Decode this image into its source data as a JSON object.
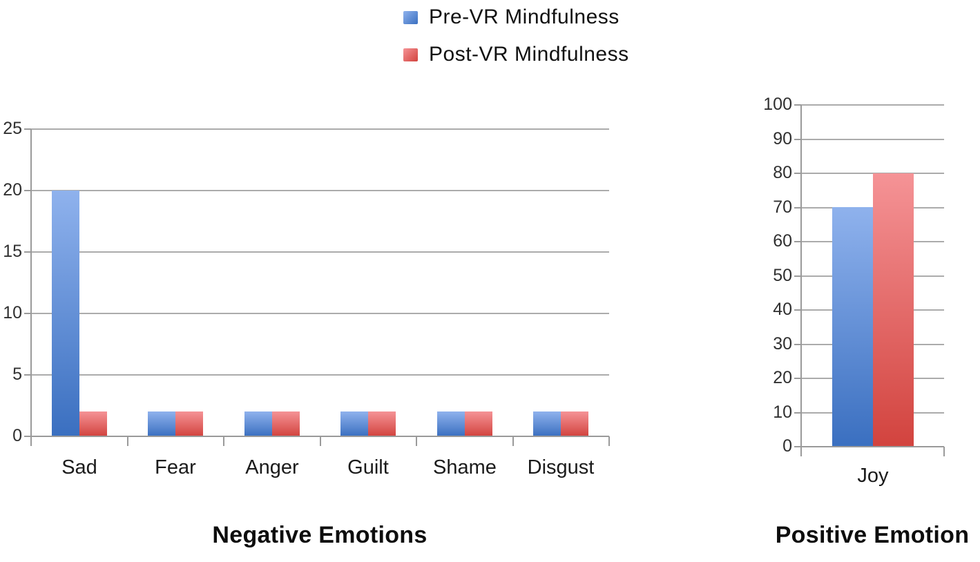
{
  "figure": {
    "legend": {
      "items": [
        {
          "label": "Pre-VR Mindfulness"
        },
        {
          "label": "Post-VR Mindfulness"
        }
      ]
    }
  },
  "colors": {
    "pre_vr_blue_light": "#8FB2ED",
    "pre_vr_blue_dark": "#3A6FC0",
    "post_vr_red_light": "#F59396",
    "post_vr_red_dark": "#D2433E",
    "gridline": "#ABABAB",
    "axis": "#9A9A9A"
  },
  "chart_data": [
    {
      "type": "bar",
      "title": "Negative Emotions",
      "categories": [
        "Sad",
        "Fear",
        "Anger",
        "Guilt",
        "Shame",
        "Disgust"
      ],
      "series": [
        {
          "name": "Pre-VR Mindfulness",
          "values": [
            20,
            2,
            2,
            2,
            2,
            2
          ]
        },
        {
          "name": "Post-VR Mindfulness",
          "values": [
            2,
            2,
            2,
            2,
            2,
            2
          ]
        }
      ],
      "xlabel": "",
      "ylabel": "",
      "ylim": [
        0,
        25
      ],
      "ytick_step": 5,
      "yticks": [
        0,
        5,
        10,
        15,
        20,
        25
      ],
      "grid": true,
      "legend_position": "top-center"
    },
    {
      "type": "bar",
      "title": "Positive Emotion",
      "categories": [
        "Joy"
      ],
      "series": [
        {
          "name": "Pre-VR Mindfulness",
          "values": [
            70
          ]
        },
        {
          "name": "Post-VR Mindfulness",
          "values": [
            80
          ]
        }
      ],
      "xlabel": "",
      "ylabel": "",
      "ylim": [
        0,
        100
      ],
      "ytick_step": 10,
      "yticks": [
        0,
        10,
        20,
        30,
        40,
        50,
        60,
        70,
        80,
        90,
        100
      ],
      "grid": true,
      "legend_position": "top-center"
    }
  ]
}
